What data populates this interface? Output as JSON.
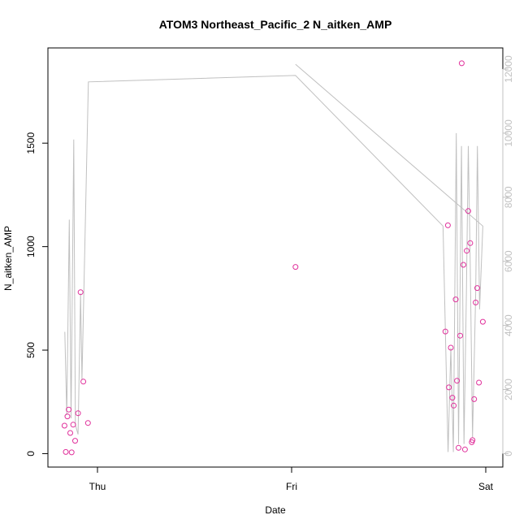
{
  "chart_data": {
    "type": "scatter",
    "title": "ATOM3 Northeast_Pacific_2 N_aitken_AMP",
    "xlabel": "Date",
    "ylabel": "N_aitken_AMP",
    "x_ticks": [
      "Thu",
      "Fri",
      "Sat"
    ],
    "x_range_days": [
      -0.2,
      2.05
    ],
    "y_left": {
      "range": [
        -65,
        1960
      ],
      "ticks": [
        0,
        500,
        1000,
        1500
      ]
    },
    "y_right": {
      "range": [
        -420,
        12660
      ],
      "ticks": [
        0,
        2000,
        4000,
        6000,
        8000,
        10000,
        12000
      ]
    },
    "grid": false,
    "colors": {
      "points": "#e0309b",
      "line": "#c0c0c0",
      "right_axis": "#c0c0c0",
      "axis": "#000000"
    },
    "series": [
      {
        "axis": "left",
        "style": "points",
        "points": [
          {
            "x": -0.17,
            "y": 135
          },
          {
            "x": -0.163,
            "y": 8
          },
          {
            "x": -0.155,
            "y": 180
          },
          {
            "x": -0.148,
            "y": 213
          },
          {
            "x": -0.14,
            "y": 100
          },
          {
            "x": -0.133,
            "y": 6
          },
          {
            "x": -0.125,
            "y": 140
          },
          {
            "x": -0.115,
            "y": 62
          },
          {
            "x": -0.1,
            "y": 195
          },
          {
            "x": -0.087,
            "y": 780
          },
          {
            "x": -0.073,
            "y": 348
          },
          {
            "x": -0.049,
            "y": 148
          },
          {
            "x": 1.02,
            "y": 902
          },
          {
            "x": 1.792,
            "y": 590
          },
          {
            "x": 1.805,
            "y": 1103
          },
          {
            "x": 1.81,
            "y": 320
          },
          {
            "x": 1.82,
            "y": 512
          },
          {
            "x": 1.828,
            "y": 270
          },
          {
            "x": 1.835,
            "y": 232
          },
          {
            "x": 1.845,
            "y": 745
          },
          {
            "x": 1.852,
            "y": 352
          },
          {
            "x": 1.86,
            "y": 28
          },
          {
            "x": 1.868,
            "y": 570
          },
          {
            "x": 1.876,
            "y": 1886
          },
          {
            "x": 1.885,
            "y": 912
          },
          {
            "x": 1.893,
            "y": 20
          },
          {
            "x": 1.902,
            "y": 980
          },
          {
            "x": 1.91,
            "y": 1172
          },
          {
            "x": 1.92,
            "y": 1017
          },
          {
            "x": 1.928,
            "y": 55
          },
          {
            "x": 1.932,
            "y": 65
          },
          {
            "x": 1.94,
            "y": 263
          },
          {
            "x": 1.948,
            "y": 730
          },
          {
            "x": 1.956,
            "y": 800
          },
          {
            "x": 1.965,
            "y": 343
          },
          {
            "x": 1.985,
            "y": 637
          }
        ]
      },
      {
        "axis": "right",
        "style": "line",
        "points": [
          {
            "x": -0.168,
            "y": 3800
          },
          {
            "x": -0.158,
            "y": 1200
          },
          {
            "x": -0.145,
            "y": 7300
          },
          {
            "x": -0.136,
            "y": 1100
          },
          {
            "x": -0.122,
            "y": 9800
          },
          {
            "x": -0.114,
            "y": 900
          },
          {
            "x": -0.1,
            "y": 600
          },
          {
            "x": -0.087,
            "y": 5000
          },
          {
            "x": -0.08,
            "y": 2300
          },
          {
            "x": -0.047,
            "y": 11600
          },
          {
            "x": 1.02,
            "y": 11800
          },
          {
            "x": 1.78,
            "y": 7100
          },
          {
            "x": 1.792,
            "y": 3800
          },
          {
            "x": 1.806,
            "y": 50
          },
          {
            "x": 1.82,
            "y": 3300
          },
          {
            "x": 1.833,
            "y": 50
          },
          {
            "x": 1.848,
            "y": 10000
          },
          {
            "x": 1.86,
            "y": 300
          },
          {
            "x": 1.875,
            "y": 9600
          },
          {
            "x": 1.888,
            "y": 300
          },
          {
            "x": 1.9,
            "y": 4900
          },
          {
            "x": 1.91,
            "y": 9600
          },
          {
            "x": 1.92,
            "y": 5900
          },
          {
            "x": 1.932,
            "y": 500
          },
          {
            "x": 1.948,
            "y": 5000
          },
          {
            "x": 1.957,
            "y": 9600
          },
          {
            "x": 1.968,
            "y": 4500
          },
          {
            "x": 1.985,
            "y": 7100
          },
          {
            "x": 1.02,
            "y": 12150
          }
        ]
      }
    ]
  }
}
